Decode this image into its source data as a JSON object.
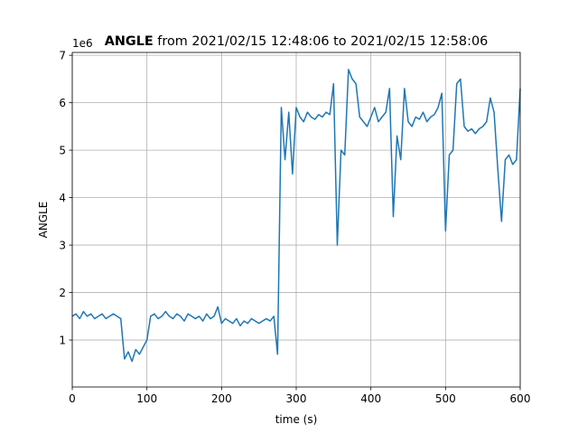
{
  "chart_data": {
    "type": "line",
    "title_bold": "ANGLE",
    "title": "from 2021/02/15 12:48:06 to 2021/02/15 12:58:06",
    "x_label": "time (s)",
    "y_label": "ANGLE",
    "y_offset_text": "1e6",
    "xlim": [
      0,
      600
    ],
    "xticks": [
      0,
      100,
      200,
      300,
      400,
      500,
      600
    ],
    "ylim": [
      0.01,
      7.06
    ],
    "yticks": [
      1,
      2,
      3,
      4,
      5,
      6,
      7
    ],
    "grid": true,
    "x": [
      0,
      5,
      10,
      15,
      20,
      25,
      30,
      35,
      40,
      45,
      50,
      55,
      60,
      65,
      70,
      75,
      80,
      85,
      90,
      95,
      100,
      105,
      110,
      115,
      120,
      125,
      130,
      135,
      140,
      145,
      150,
      155,
      160,
      165,
      170,
      175,
      180,
      185,
      190,
      195,
      200,
      205,
      210,
      215,
      220,
      225,
      230,
      235,
      240,
      245,
      250,
      255,
      260,
      265,
      270,
      275,
      280,
      285,
      290,
      295,
      300,
      305,
      310,
      315,
      320,
      325,
      330,
      335,
      340,
      345,
      350,
      355,
      360,
      365,
      370,
      375,
      380,
      385,
      390,
      395,
      400,
      405,
      410,
      415,
      420,
      425,
      430,
      435,
      440,
      445,
      450,
      455,
      460,
      465,
      470,
      475,
      480,
      485,
      490,
      495,
      500,
      505,
      510,
      515,
      520,
      525,
      530,
      535,
      540,
      545,
      550,
      555,
      560,
      565,
      570,
      575,
      580,
      585,
      590,
      595,
      600
    ],
    "series": [
      {
        "name": "ANGLE",
        "color": "#1f77b4",
        "values": [
          1.5,
          1.55,
          1.45,
          1.6,
          1.5,
          1.55,
          1.45,
          1.5,
          1.55,
          1.45,
          1.5,
          1.55,
          1.5,
          1.45,
          0.6,
          0.75,
          0.55,
          0.8,
          0.7,
          0.85,
          1.0,
          1.5,
          1.55,
          1.45,
          1.5,
          1.6,
          1.5,
          1.45,
          1.55,
          1.5,
          1.4,
          1.55,
          1.5,
          1.45,
          1.5,
          1.4,
          1.55,
          1.45,
          1.5,
          1.7,
          1.35,
          1.45,
          1.4,
          1.35,
          1.45,
          1.3,
          1.4,
          1.35,
          1.45,
          1.4,
          1.35,
          1.4,
          1.45,
          1.4,
          1.5,
          0.7,
          5.9,
          4.8,
          5.8,
          4.5,
          5.9,
          5.7,
          5.6,
          5.8,
          5.7,
          5.65,
          5.75,
          5.7,
          5.8,
          5.75,
          6.4,
          3.0,
          5.0,
          4.9,
          6.7,
          6.5,
          6.4,
          5.7,
          5.6,
          5.5,
          5.7,
          5.9,
          5.6,
          5.7,
          5.8,
          6.3,
          3.6,
          5.3,
          4.8,
          6.3,
          5.6,
          5.5,
          5.7,
          5.65,
          5.8,
          5.6,
          5.7,
          5.75,
          5.9,
          6.2,
          3.3,
          4.9,
          5.0,
          6.4,
          6.5,
          5.5,
          5.4,
          5.45,
          5.35,
          5.45,
          5.5,
          5.6,
          6.1,
          5.8,
          4.6,
          3.5,
          4.8,
          4.9,
          4.7,
          4.8,
          6.3
        ]
      }
    ]
  }
}
